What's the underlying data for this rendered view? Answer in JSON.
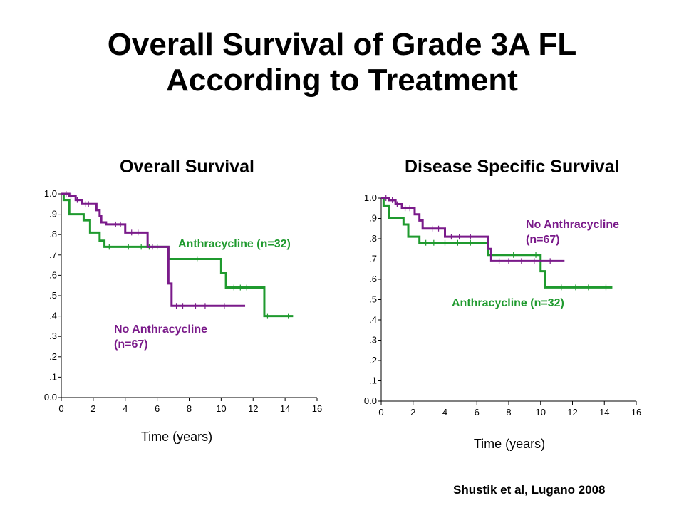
{
  "slide": {
    "title_line1": "Overall Survival of Grade 3A FL",
    "title_line2": "According to Treatment",
    "citation": "Shustik et al, Lugano 2008"
  },
  "colors": {
    "anthracycline": "#1f9a2e",
    "no_anthracycline": "#7a1a8a"
  },
  "chart_data": [
    {
      "type": "line",
      "title": "Overall Survival",
      "xlabel": "Time (years)",
      "ylabel": "",
      "xlim": [
        0,
        16
      ],
      "ylim": [
        0,
        1
      ],
      "x_ticks": [
        0,
        2,
        4,
        6,
        8,
        10,
        12,
        14,
        16
      ],
      "x_tick_labels": [
        "0",
        "2",
        "4",
        "6",
        "8",
        "10",
        "12",
        "14",
        "16"
      ],
      "y_ticks": [
        0,
        0.1,
        0.2,
        0.3,
        0.4,
        0.5,
        0.6,
        0.7,
        0.8,
        0.9,
        1.0
      ],
      "y_tick_labels": [
        "0.0",
        ".1",
        ".2",
        ".3",
        ".4",
        ".5",
        ".6",
        ".7",
        ".8",
        ".9",
        "1.0"
      ],
      "series": [
        {
          "name": "Anthracycline (n=32)",
          "color": "#1f9a2e",
          "x": [
            0,
            0.15,
            0.5,
            1.4,
            1.8,
            2.4,
            2.7,
            6.7,
            10.0,
            10.3,
            12.7,
            14.5
          ],
          "y": [
            1.0,
            0.97,
            0.9,
            0.87,
            0.81,
            0.77,
            0.74,
            0.68,
            0.61,
            0.54,
            0.4,
            0.4
          ],
          "censor_x": [
            3.0,
            4.2,
            5.0,
            5.5,
            6.0,
            8.5,
            10.8,
            11.2,
            11.6,
            12.9,
            14.2
          ]
        },
        {
          "name": "No Anthracycline (n=67)",
          "color": "#7a1a8a",
          "x": [
            0,
            0.5,
            0.9,
            1.3,
            2.2,
            2.4,
            2.5,
            2.8,
            3.0,
            4.0,
            5.4,
            6.7,
            6.9,
            11.5
          ],
          "y": [
            1.0,
            0.99,
            0.97,
            0.95,
            0.92,
            0.89,
            0.86,
            0.85,
            0.85,
            0.81,
            0.74,
            0.56,
            0.45,
            0.45
          ],
          "censor_x": [
            0.3,
            0.6,
            1.0,
            1.5,
            1.7,
            3.4,
            3.7,
            4.4,
            4.8,
            5.7,
            7.2,
            7.6,
            8.4,
            9.0,
            10.2
          ]
        }
      ]
    },
    {
      "type": "line",
      "title": "Disease Specific Survival",
      "xlabel": "Time (years)",
      "ylabel": "",
      "xlim": [
        0,
        16
      ],
      "ylim": [
        0,
        1
      ],
      "x_ticks": [
        0,
        2,
        4,
        6,
        8,
        10,
        12,
        14,
        16
      ],
      "x_tick_labels": [
        "0",
        "2",
        "4",
        "6",
        "8",
        "10",
        "12",
        "14",
        "16"
      ],
      "y_ticks": [
        0,
        0.1,
        0.2,
        0.3,
        0.4,
        0.5,
        0.6,
        0.7,
        0.8,
        0.9,
        1.0
      ],
      "y_tick_labels": [
        "0.0",
        ".1",
        ".2",
        ".3",
        ".4",
        ".5",
        ".6",
        ".7",
        ".8",
        ".9",
        "1.0"
      ],
      "series": [
        {
          "name": "Anthracycline (n=32)",
          "color": "#1f9a2e",
          "x": [
            0,
            0.15,
            0.5,
            1.4,
            1.7,
            2.4,
            6.7,
            10.0,
            10.3,
            14.5
          ],
          "y": [
            1.0,
            0.96,
            0.9,
            0.87,
            0.81,
            0.78,
            0.72,
            0.64,
            0.56,
            0.56
          ],
          "censor_x": [
            2.8,
            3.3,
            4.0,
            4.8,
            5.6,
            8.3,
            9.7,
            11.3,
            12.2,
            13.0,
            14.1
          ]
        },
        {
          "name": "No Anthracycline (n=67)",
          "color": "#7a1a8a",
          "x": [
            0,
            0.5,
            0.9,
            1.3,
            2.1,
            2.4,
            2.6,
            4.0,
            6.7,
            6.9,
            11.5
          ],
          "y": [
            1.0,
            0.99,
            0.97,
            0.95,
            0.92,
            0.89,
            0.85,
            0.81,
            0.75,
            0.69,
            0.69
          ],
          "censor_x": [
            0.3,
            0.7,
            1.0,
            1.5,
            1.8,
            3.2,
            3.6,
            4.4,
            4.9,
            5.6,
            7.4,
            8.0,
            8.8,
            9.6,
            10.6
          ]
        }
      ]
    }
  ]
}
